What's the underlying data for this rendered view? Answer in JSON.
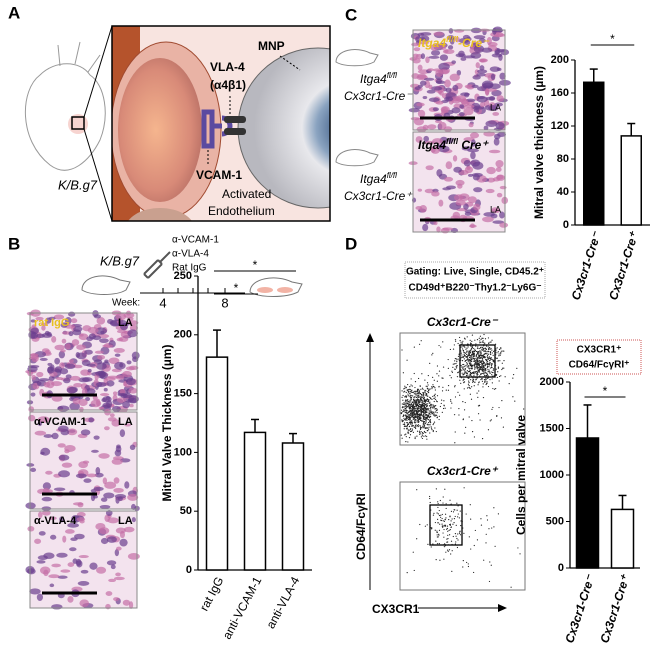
{
  "panel_labels": [
    "A",
    "B",
    "C",
    "D"
  ],
  "diagram_a": {
    "model": "K/B.g7",
    "mnp": "MNP",
    "vla4": "VLA-4",
    "vla4_sub": "(α4β1)",
    "vcam1": "VCAM-1",
    "endothelium": [
      "Activated",
      "Endothelium"
    ]
  },
  "timeline_b": {
    "model": "K/B.g7",
    "treatments": [
      "α-VCAM-1",
      "α-VLA-4",
      "Rat IgG"
    ],
    "week_label": "Week:",
    "weeks": [
      "4",
      "8"
    ]
  },
  "histology_b": [
    {
      "label": "rat IgG",
      "region": "LA"
    },
    {
      "label": "α-VCAM-1",
      "region": "LA"
    },
    {
      "label": "α-VLA-4",
      "region": "LA"
    }
  ],
  "mice_c": [
    {
      "gene": "Itga4",
      "sup": "fl/fl",
      "cre": "Cx3cr1-Cre⁻"
    },
    {
      "gene": "Itga4",
      "sup": "fl/fl",
      "cre": "Cx3cr1-Cre⁺"
    }
  ],
  "histology_c": [
    {
      "gene": "Itga4",
      "sup": "fl/fl",
      "cre": "-Cre⁻",
      "region": "LA"
    },
    {
      "gene": "Itga4",
      "sup": "fl/fl",
      "cre": " Cre⁺",
      "region": "LA"
    }
  ],
  "flow_d": {
    "gating": [
      "Gating: Live, Single, CD45.2⁺",
      "CD49d⁺B220⁻Thy1.2⁻Ly6G⁻"
    ],
    "titles": [
      "Cx3cr1-Cre⁻",
      "Cx3cr1-Cre⁺"
    ],
    "ylabel": "CD64/FcγRI",
    "xlabel": "CX3CR1"
  },
  "chart_data": [
    {
      "type": "bar",
      "ylabel": "Mitral Valve Thickness (µm)",
      "categories": [
        "rat IgG",
        "anti-VCAM-1",
        "anti-VLA-4"
      ],
      "values": [
        181,
        117,
        108
      ],
      "errors": [
        23,
        11,
        8
      ],
      "colors": [
        "#ffffff",
        "#ffffff",
        "#ffffff"
      ],
      "ylim": [
        0,
        250
      ],
      "yticks": [
        0,
        50,
        100,
        150,
        200,
        250
      ],
      "significance": [
        {
          "from": 0,
          "to": 2,
          "label": "*"
        },
        {
          "from": 0,
          "to": 1,
          "label": "*"
        }
      ]
    },
    {
      "type": "bar",
      "ylabel": "Mitral valve thickness (µm)",
      "categories": [
        "Cx3cr1-Cre⁻",
        "Cx3cr1-Cre⁺"
      ],
      "values": [
        173,
        108
      ],
      "errors": [
        16,
        15
      ],
      "colors": [
        "#000000",
        "#ffffff"
      ],
      "ylim": [
        0,
        200
      ],
      "yticks": [
        0,
        40,
        80,
        120,
        160,
        200
      ],
      "significance": [
        {
          "from": 0,
          "to": 1,
          "label": "*"
        }
      ]
    },
    {
      "type": "bar",
      "ylabel": "Cells per mitral valve",
      "annotation": [
        "CX3CR1⁺",
        "CD64/FcγRI⁺"
      ],
      "categories": [
        "Cx3cr1-Cre⁻",
        "Cx3cr1-Cre⁺"
      ],
      "values": [
        1398,
        630
      ],
      "errors": [
        355,
        150
      ],
      "colors": [
        "#000000",
        "#ffffff"
      ],
      "ylim": [
        0,
        2000
      ],
      "yticks": [
        0,
        500,
        1000,
        1500,
        2000
      ],
      "significance": [
        {
          "from": 0,
          "to": 1,
          "label": "*"
        }
      ]
    }
  ]
}
